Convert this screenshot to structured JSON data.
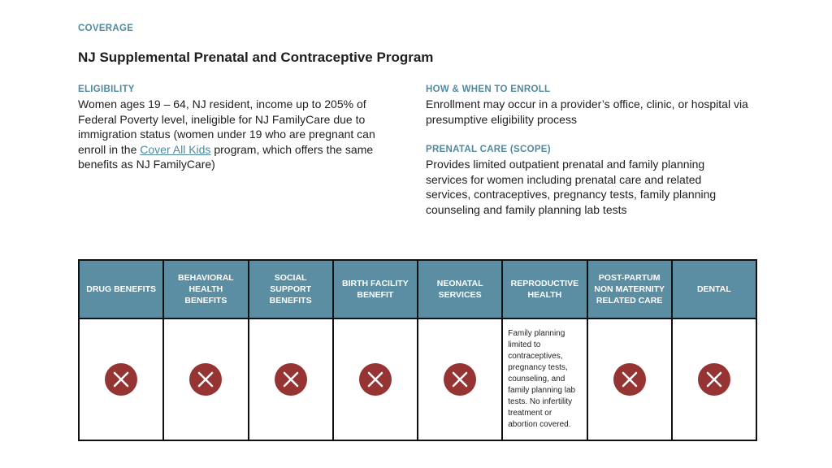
{
  "header": {
    "section": "COVERAGE",
    "title": "NJ Supplemental Prenatal and Contraceptive Program"
  },
  "eligibility": {
    "label": "ELIGIBILITY",
    "text_before": "Women ages 19 – 64, NJ resident, income up to 205% of Federal Poverty level, ineligible for NJ FamilyCare due to immigration status (women under 19 who are pregnant can enroll in the",
    "link": "Cover All Kids",
    "text_after": "program, which offers the same benefits as NJ FamilyCare)"
  },
  "enroll": {
    "label": "HOW & WHEN TO ENROLL",
    "text": "Enrollment may occur in a provider’s office, clinic, or hospital via presumptive eligibility process"
  },
  "prenatal": {
    "label": "PRENATAL CARE (SCOPE)",
    "text": "Provides limited outpatient prenatal and family planning services for women including prenatal care and related services, contraceptives, pregnancy tests, family planning counseling and family planning lab tests"
  },
  "table": {
    "columns": [
      {
        "header": "DRUG BENEFITS"
      },
      {
        "header": "BEHAVIORAL HEALTH BENEFITS"
      },
      {
        "header": "SOCIAL SUPPORT BENEFITS"
      },
      {
        "header": "BIRTH FACILITY BENEFIT"
      },
      {
        "header": "NEONATAL SERVICES"
      },
      {
        "header": "REPRODUCTIVE HEALTH",
        "note": "Family planning limited to contraceptives, pregnancy tests, counseling, and family planning lab tests. No infertility treatment or abortion covered."
      },
      {
        "header": "POST-PARTUM NON MATERNITY RELATED CARE"
      },
      {
        "header": "DENTAL"
      }
    ]
  }
}
